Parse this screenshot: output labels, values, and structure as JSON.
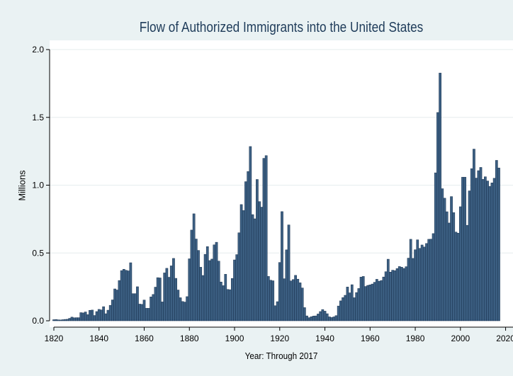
{
  "chart_data": {
    "type": "bar",
    "title": "Flow of Authorized Immigrants into the United States",
    "xlabel": "Year: Through 2017",
    "ylabel": "Millions",
    "xlim": [
      1818,
      2021
    ],
    "ylim": [
      0,
      2.0
    ],
    "x_ticks": [
      1820,
      1840,
      1860,
      1880,
      1900,
      1920,
      1940,
      1960,
      1980,
      2000,
      2020
    ],
    "x_tick_labels": [
      "1820",
      "1840",
      "1860",
      "1880",
      "1900",
      "1920",
      "1940",
      "1960",
      "1980",
      "2000",
      "2020"
    ],
    "y_ticks": [
      0,
      0.5,
      1.0,
      1.5,
      2.0
    ],
    "y_tick_labels": [
      "0.0",
      "0.5",
      "1.0",
      "1.5",
      "2.0"
    ],
    "grid": "horizontal",
    "x": [
      1820,
      1821,
      1822,
      1823,
      1824,
      1825,
      1826,
      1827,
      1828,
      1829,
      1830,
      1831,
      1832,
      1833,
      1834,
      1835,
      1836,
      1837,
      1838,
      1839,
      1840,
      1841,
      1842,
      1843,
      1844,
      1845,
      1846,
      1847,
      1848,
      1849,
      1850,
      1851,
      1852,
      1853,
      1854,
      1855,
      1856,
      1857,
      1858,
      1859,
      1860,
      1861,
      1862,
      1863,
      1864,
      1865,
      1866,
      1867,
      1868,
      1869,
      1870,
      1871,
      1872,
      1873,
      1874,
      1875,
      1876,
      1877,
      1878,
      1879,
      1880,
      1881,
      1882,
      1883,
      1884,
      1885,
      1886,
      1887,
      1888,
      1889,
      1890,
      1891,
      1892,
      1893,
      1894,
      1895,
      1896,
      1897,
      1898,
      1899,
      1900,
      1901,
      1902,
      1903,
      1904,
      1905,
      1906,
      1907,
      1908,
      1909,
      1910,
      1911,
      1912,
      1913,
      1914,
      1915,
      1916,
      1917,
      1918,
      1919,
      1920,
      1921,
      1922,
      1923,
      1924,
      1925,
      1926,
      1927,
      1928,
      1929,
      1930,
      1931,
      1932,
      1933,
      1934,
      1935,
      1936,
      1937,
      1938,
      1939,
      1940,
      1941,
      1942,
      1943,
      1944,
      1945,
      1946,
      1947,
      1948,
      1949,
      1950,
      1951,
      1952,
      1953,
      1954,
      1955,
      1956,
      1957,
      1958,
      1959,
      1960,
      1961,
      1962,
      1963,
      1964,
      1965,
      1966,
      1967,
      1968,
      1969,
      1970,
      1971,
      1972,
      1973,
      1974,
      1975,
      1976,
      1977,
      1978,
      1979,
      1980,
      1981,
      1982,
      1983,
      1984,
      1985,
      1986,
      1987,
      1988,
      1989,
      1990,
      1991,
      1992,
      1993,
      1994,
      1995,
      1996,
      1997,
      1998,
      1999,
      2000,
      2001,
      2002,
      2003,
      2004,
      2005,
      2006,
      2007,
      2008,
      2009,
      2010,
      2011,
      2012,
      2013,
      2014,
      2015,
      2016,
      2017
    ],
    "values": [
      0.008,
      0.009,
      0.007,
      0.006,
      0.008,
      0.01,
      0.011,
      0.018,
      0.027,
      0.022,
      0.023,
      0.023,
      0.06,
      0.058,
      0.065,
      0.045,
      0.077,
      0.079,
      0.039,
      0.068,
      0.084,
      0.08,
      0.104,
      0.052,
      0.078,
      0.114,
      0.154,
      0.235,
      0.227,
      0.297,
      0.37,
      0.38,
      0.372,
      0.368,
      0.428,
      0.2,
      0.2,
      0.251,
      0.123,
      0.121,
      0.153,
      0.092,
      0.092,
      0.176,
      0.194,
      0.248,
      0.318,
      0.316,
      0.139,
      0.353,
      0.387,
      0.321,
      0.405,
      0.46,
      0.313,
      0.227,
      0.17,
      0.142,
      0.138,
      0.178,
      0.457,
      0.669,
      0.789,
      0.603,
      0.519,
      0.395,
      0.334,
      0.49,
      0.547,
      0.444,
      0.455,
      0.56,
      0.579,
      0.44,
      0.286,
      0.259,
      0.343,
      0.231,
      0.229,
      0.312,
      0.449,
      0.488,
      0.649,
      0.857,
      0.813,
      1.026,
      1.101,
      1.285,
      0.783,
      0.752,
      1.042,
      0.879,
      0.838,
      1.198,
      1.218,
      0.327,
      0.299,
      0.295,
      0.111,
      0.141,
      0.43,
      0.805,
      0.31,
      0.523,
      0.707,
      0.294,
      0.304,
      0.335,
      0.307,
      0.28,
      0.242,
      0.097,
      0.036,
      0.023,
      0.03,
      0.035,
      0.036,
      0.05,
      0.068,
      0.083,
      0.071,
      0.052,
      0.029,
      0.024,
      0.029,
      0.038,
      0.109,
      0.147,
      0.171,
      0.188,
      0.249,
      0.206,
      0.266,
      0.17,
      0.208,
      0.238,
      0.322,
      0.327,
      0.253,
      0.261,
      0.265,
      0.271,
      0.284,
      0.306,
      0.292,
      0.297,
      0.323,
      0.362,
      0.454,
      0.359,
      0.373,
      0.37,
      0.385,
      0.4,
      0.395,
      0.386,
      0.399,
      0.462,
      0.601,
      0.46,
      0.524,
      0.597,
      0.534,
      0.559,
      0.544,
      0.57,
      0.601,
      0.602,
      0.643,
      1.091,
      1.536,
      1.827,
      0.974,
      0.904,
      0.804,
      0.721,
      0.916,
      0.798,
      0.654,
      0.646,
      0.841,
      1.059,
      1.059,
      0.704,
      0.958,
      1.122,
      1.266,
      1.052,
      1.107,
      1.131,
      1.043,
      1.062,
      1.031,
      0.991,
      1.017,
      1.051,
      1.183,
      1.127
    ]
  }
}
